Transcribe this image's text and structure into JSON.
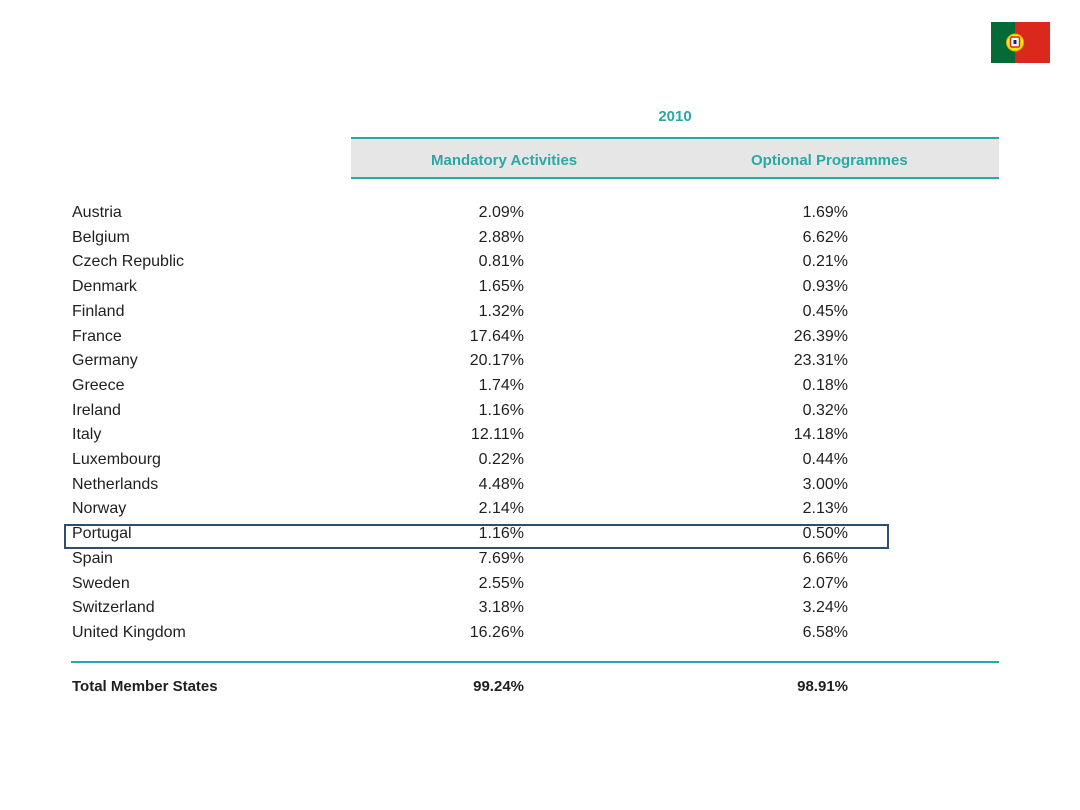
{
  "flag_icon": "portugal-flag-icon",
  "colors": {
    "accent": "#2aa8a5",
    "header_band": "#e6e6e6",
    "highlight_border": "#2f4e6e"
  },
  "chart_data": {
    "type": "table",
    "year": "2010",
    "columns": [
      "Mandatory Activities",
      "Optional Programmes"
    ],
    "rows": [
      {
        "country": "Austria",
        "mandatory": "2.09%",
        "optional": "1.69%"
      },
      {
        "country": "Belgium",
        "mandatory": "2.88%",
        "optional": "6.62%"
      },
      {
        "country": "Czech Republic",
        "mandatory": "0.81%",
        "optional": "0.21%"
      },
      {
        "country": "Denmark",
        "mandatory": "1.65%",
        "optional": "0.93%"
      },
      {
        "country": "Finland",
        "mandatory": "1.32%",
        "optional": "0.45%"
      },
      {
        "country": "France",
        "mandatory": "17.64%",
        "optional": "26.39%"
      },
      {
        "country": "Germany",
        "mandatory": "20.17%",
        "optional": "23.31%"
      },
      {
        "country": "Greece",
        "mandatory": "1.74%",
        "optional": "0.18%"
      },
      {
        "country": "Ireland",
        "mandatory": "1.16%",
        "optional": "0.32%"
      },
      {
        "country": "Italy",
        "mandatory": "12.11%",
        "optional": "14.18%"
      },
      {
        "country": "Luxembourg",
        "mandatory": "0.22%",
        "optional": "0.44%"
      },
      {
        "country": "Netherlands",
        "mandatory": "4.48%",
        "optional": "3.00%"
      },
      {
        "country": "Norway",
        "mandatory": "2.14%",
        "optional": "2.13%"
      },
      {
        "country": "Portugal",
        "mandatory": "1.16%",
        "optional": "0.50%",
        "highlighted": true
      },
      {
        "country": "Spain",
        "mandatory": "7.69%",
        "optional": "6.66%"
      },
      {
        "country": "Sweden",
        "mandatory": "2.55%",
        "optional": "2.07%"
      },
      {
        "country": "Switzerland",
        "mandatory": "3.18%",
        "optional": "3.24%"
      },
      {
        "country": "United Kingdom",
        "mandatory": "16.26%",
        "optional": "6.58%"
      }
    ],
    "total": {
      "label": "Total Member States",
      "mandatory": "99.24%",
      "optional": "98.91%"
    }
  }
}
